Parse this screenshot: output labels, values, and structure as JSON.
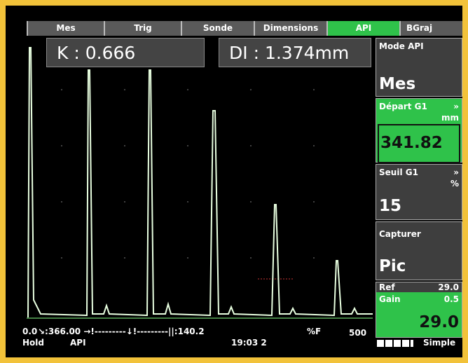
{
  "tabs": [
    "Mes",
    "Trig",
    "Sonde",
    "Dimensions",
    "API",
    "BGraj"
  ],
  "readouts": [
    "K : 0.666",
    "DI : 1.374mm"
  ],
  "panel": {
    "mode_label": "Mode API",
    "mode_value": "Mes",
    "start_label": "Départ G1",
    "start_arrow": "»",
    "start_unit": "mm",
    "start_value": "341.82",
    "threshold_label": "Seuil G1",
    "threshold_arrow": "»",
    "threshold_unit": "%",
    "threshold_value": "15",
    "capture_label": "Capturer",
    "capture_value": "Pic",
    "ref_label": "Ref",
    "ref_value": "29.0",
    "gain_label": "Gain",
    "gain_value": "0.5",
    "gain_total": "29.0"
  },
  "status": {
    "left": "0.0",
    "scale": "↘:366.00 →!---------↓!---------||:140.2",
    "unit": "%F",
    "right": "500",
    "hold": "Hold",
    "mode": "API",
    "time": "19:03 2",
    "simple": "Simple"
  }
}
